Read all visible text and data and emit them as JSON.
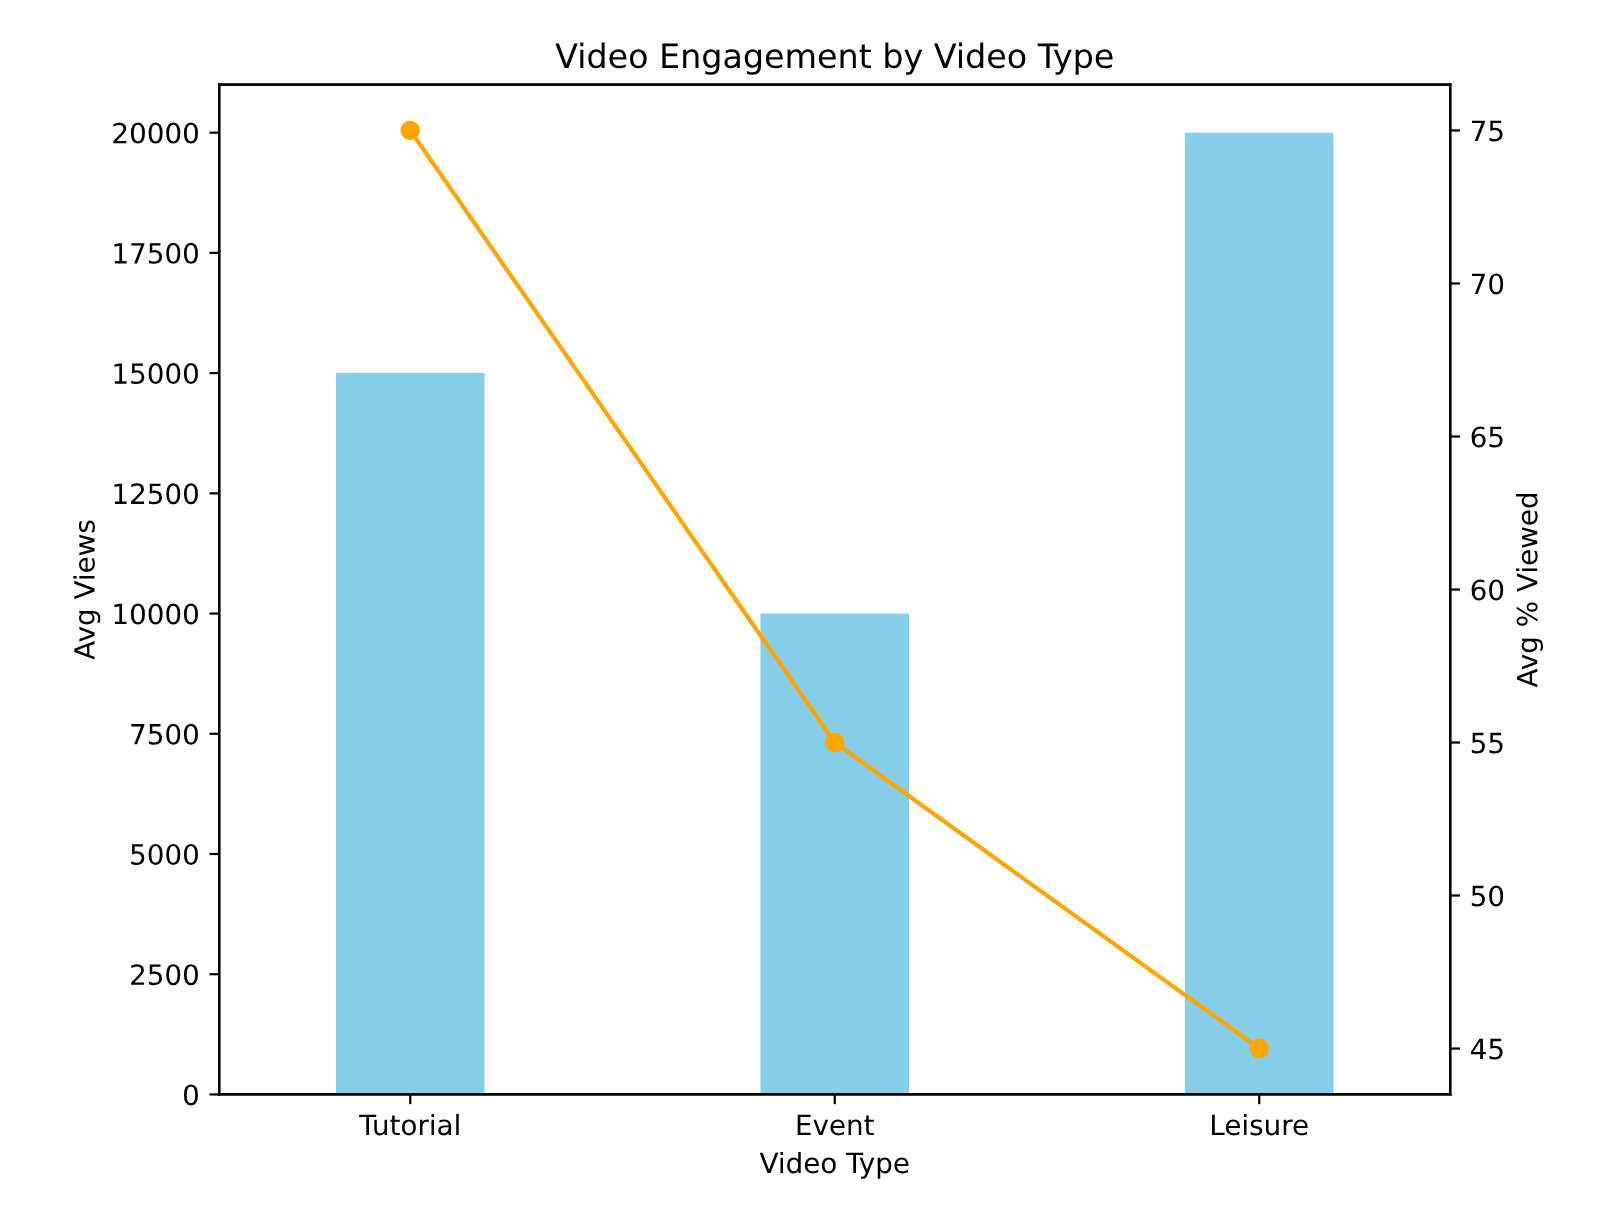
{
  "chart_data": {
    "type": "bar",
    "title": "Video Engagement by Video Type",
    "xlabel": "Video Type",
    "ylabel": "Avg Views",
    "y2label": "Avg % Viewed",
    "categories": [
      "Tutorial",
      "Event",
      "Leisure"
    ],
    "series": [
      {
        "color": "#87ceeb",
        "values": [
          15000,
          10000,
          20000
        ]
      },
      {
        "type": "line",
        "axis": "y2",
        "color": "#ffa500",
        "values": [
          75,
          55,
          45
        ],
        "marker": "circle"
      }
    ],
    "ylim": [
      0,
      21000
    ],
    "yticks": [
      0,
      2500,
      5000,
      7500,
      10000,
      12500,
      15000,
      17500,
      20000
    ],
    "y2lim": [
      43.5,
      76.5
    ],
    "y2ticks": [
      45,
      50,
      55,
      60,
      65,
      70,
      75
    ],
    "grid": false,
    "legend": false
  }
}
